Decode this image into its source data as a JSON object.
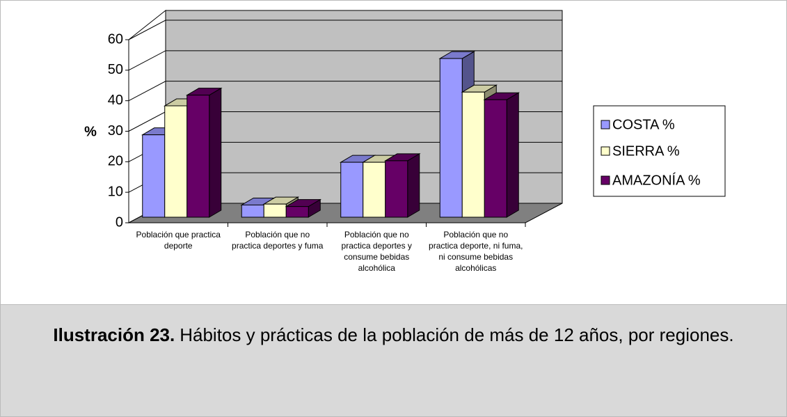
{
  "chart_data": {
    "type": "bar3d",
    "y_label": "%",
    "categories": [
      "Población que practica deporte",
      "Población que no practica deportes y fuma",
      "Población que no practica deportes y consume bebidas alcohólica",
      "Población que no practica deporte, ni fuma, ni consume bebidas alcohólicas"
    ],
    "series": [
      {
        "name": "COSTA %",
        "color": "#9999ff",
        "values": [
          27,
          4,
          18,
          52
        ]
      },
      {
        "name": "SIERRA %",
        "color": "#ffffcc",
        "values": [
          36.5,
          4.3,
          18,
          41
        ]
      },
      {
        "name": "AMAZONÍA %",
        "color": "#660066",
        "values": [
          40,
          3.5,
          18.5,
          38.5
        ]
      }
    ],
    "ylim": [
      0,
      60
    ],
    "yticks": [
      0,
      10,
      20,
      30,
      40,
      50,
      60
    ],
    "grid": true,
    "legend": "right"
  },
  "caption": {
    "label": "Ilustración 23.",
    "text": "Hábitos y prácticas de la población de más de 12 años, por regiones."
  }
}
